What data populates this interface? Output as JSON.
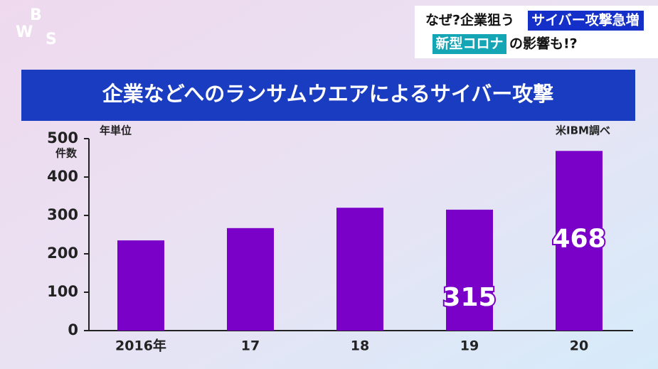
{
  "logo": [
    "W",
    "B",
    "S"
  ],
  "caption": {
    "line1": [
      "なぜ?企業狙う",
      "サイバー攻撃急増"
    ],
    "line2": [
      "新型コロナ",
      "の影響も!?"
    ]
  },
  "chart_data": {
    "type": "bar",
    "title": "企業などへのランサムウエアによるサイバー攻撃",
    "y_label": "件数",
    "unit_note": "年単位",
    "source": "米IBM調べ",
    "categories": [
      "2016年",
      "17",
      "18",
      "19",
      "20"
    ],
    "values": [
      235,
      267,
      320,
      315,
      468
    ],
    "value_labels": [
      null,
      null,
      null,
      "315",
      "468"
    ],
    "color": "#7a02c8",
    "ylim": [
      0,
      500
    ],
    "yticks": [
      0,
      100,
      200,
      300,
      400,
      500
    ]
  }
}
